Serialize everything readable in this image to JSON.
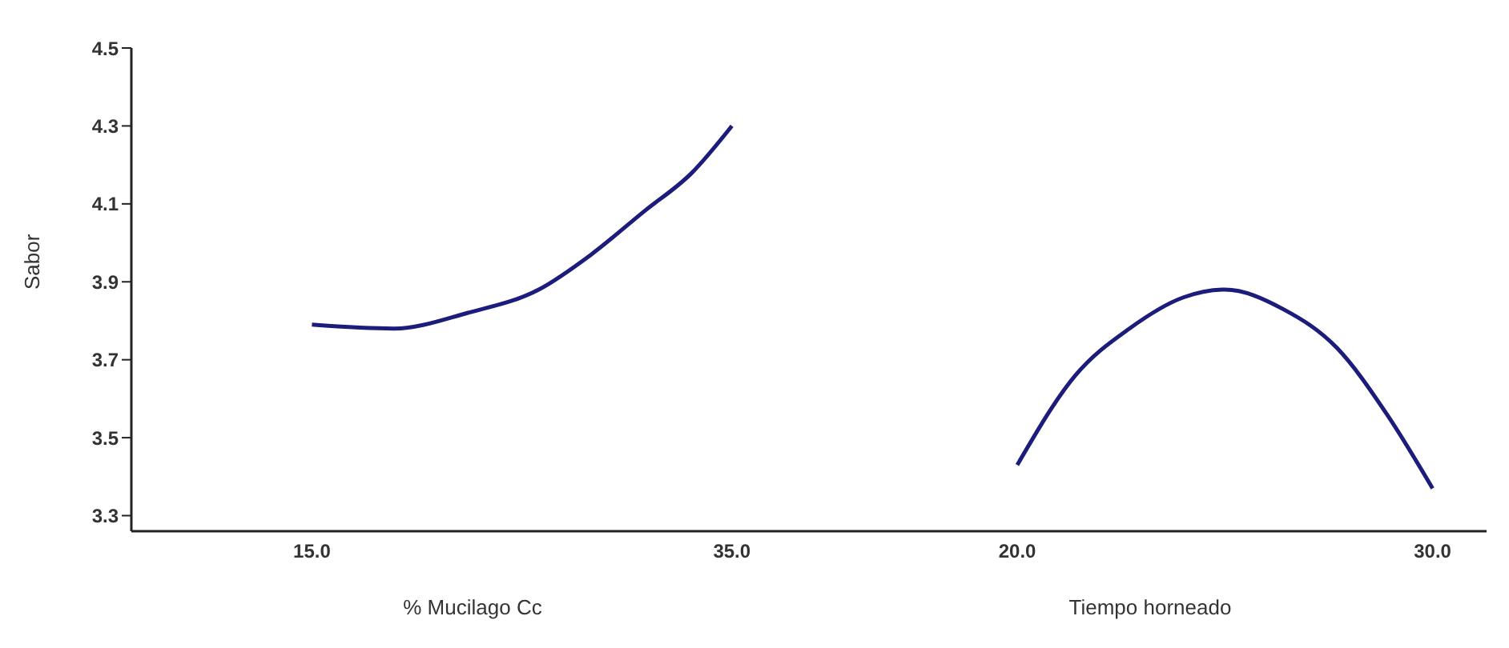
{
  "chart_data": [
    {
      "type": "line",
      "ylabel": "Sabor",
      "xlabel": "% Mucilago Cc",
      "x": [
        15,
        18.9,
        22.4,
        25.8,
        28.3,
        30.8,
        33.1,
        35
      ],
      "series": [
        {
          "color": "#1c1c7c",
          "values": [
            3.79,
            3.78,
            3.82,
            3.88,
            3.97,
            4.08,
            4.18,
            4.3
          ]
        }
      ],
      "xlim": [
        6.4,
        38.9
      ],
      "xticks": [
        {
          "value": 15,
          "label": "15.0"
        },
        {
          "value": 35,
          "label": "35.0"
        }
      ],
      "ylim": [
        3.26,
        4.5
      ],
      "yticks": [
        3.3,
        3.5,
        3.7,
        3.9,
        4.1,
        4.3,
        4.5
      ],
      "grid": false,
      "legend": false,
      "marker": "none"
    },
    {
      "type": "line",
      "xlabel": "Tiempo horneado",
      "x": [
        20,
        21.4,
        22.7,
        24,
        25,
        26.4,
        27.7,
        28.9,
        30
      ],
      "series": [
        {
          "color": "#1c1c7c",
          "values": [
            3.43,
            3.66,
            3.78,
            3.86,
            3.88,
            3.83,
            3.73,
            3.56,
            3.37
          ]
        }
      ],
      "xlim": [
        15.1,
        31.3
      ],
      "xticks": [
        {
          "value": 20,
          "label": "20.0"
        },
        {
          "value": 30,
          "label": "30.0"
        }
      ],
      "ylim": [
        3.26,
        4.5
      ],
      "yticks": [
        3.3,
        3.5,
        3.7,
        3.9,
        4.1,
        4.3,
        4.5
      ],
      "tick_labels": "x",
      "grid": false,
      "legend": false,
      "marker": "none"
    }
  ]
}
